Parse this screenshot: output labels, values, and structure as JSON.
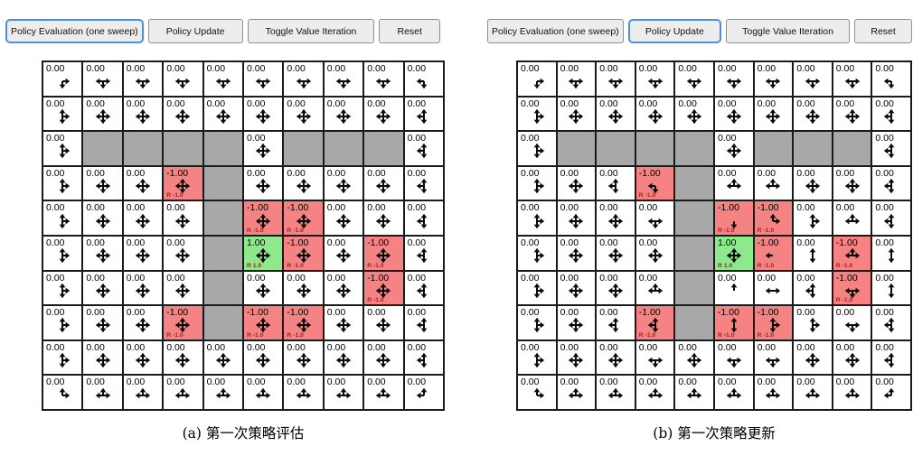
{
  "colors": {
    "accent_blue": "#4a90e2",
    "wall_gray": "#a8a8a8",
    "penalty_red": "#f58383",
    "goal_green": "#8fe88b",
    "reward_text": "#a32222"
  },
  "panels": [
    {
      "id": "a",
      "caption": "(a) 第一次策略评估",
      "buttons": [
        {
          "label": "Policy Evaluation (one sweep)",
          "active": true
        },
        {
          "label": "Policy Update",
          "active": false
        },
        {
          "label": "Toggle Value Iteration",
          "active": false
        },
        {
          "label": "Reset",
          "active": false
        }
      ],
      "grid": {
        "rows": 10,
        "cols": 10,
        "cells": [
          [
            {
              "v": "0.00",
              "a": "dr"
            },
            {
              "v": "0.00",
              "a": "ldr"
            },
            {
              "v": "0.00",
              "a": "ldr"
            },
            {
              "v": "0.00",
              "a": "ldr"
            },
            {
              "v": "0.00",
              "a": "ldr"
            },
            {
              "v": "0.00",
              "a": "ldr"
            },
            {
              "v": "0.00",
              "a": "ldr"
            },
            {
              "v": "0.00",
              "a": "ldr"
            },
            {
              "v": "0.00",
              "a": "ldr"
            },
            {
              "v": "0.00",
              "a": "dl"
            }
          ],
          [
            {
              "v": "0.00",
              "a": "udr"
            },
            {
              "v": "0.00",
              "a": "udlr"
            },
            {
              "v": "0.00",
              "a": "udlr"
            },
            {
              "v": "0.00",
              "a": "udlr"
            },
            {
              "v": "0.00",
              "a": "udlr"
            },
            {
              "v": "0.00",
              "a": "udlr"
            },
            {
              "v": "0.00",
              "a": "udlr"
            },
            {
              "v": "0.00",
              "a": "udlr"
            },
            {
              "v": "0.00",
              "a": "udlr"
            },
            {
              "v": "0.00",
              "a": "udl"
            }
          ],
          [
            {
              "v": "0.00",
              "a": "udr"
            },
            {
              "t": "w"
            },
            {
              "t": "w"
            },
            {
              "t": "w"
            },
            {
              "t": "w"
            },
            {
              "v": "0.00",
              "a": "udlr"
            },
            {
              "t": "w"
            },
            {
              "t": "w"
            },
            {
              "t": "w"
            },
            {
              "v": "0.00",
              "a": "udl"
            }
          ],
          [
            {
              "v": "0.00",
              "a": "udr"
            },
            {
              "v": "0.00",
              "a": "udlr"
            },
            {
              "v": "0.00",
              "a": "udlr"
            },
            {
              "v": "-1.00",
              "t": "neg",
              "a": "udlr",
              "r": "R -1.0"
            },
            {
              "t": "w"
            },
            {
              "v": "0.00",
              "a": "udlr"
            },
            {
              "v": "0.00",
              "a": "udlr"
            },
            {
              "v": "0.00",
              "a": "udlr"
            },
            {
              "v": "0.00",
              "a": "udlr"
            },
            {
              "v": "0.00",
              "a": "udl"
            }
          ],
          [
            {
              "v": "0.00",
              "a": "udr"
            },
            {
              "v": "0.00",
              "a": "udlr"
            },
            {
              "v": "0.00",
              "a": "udlr"
            },
            {
              "v": "0.00",
              "a": "udlr"
            },
            {
              "t": "w"
            },
            {
              "v": "-1.00",
              "t": "neg",
              "a": "udlr",
              "r": "R -1.0"
            },
            {
              "v": "-1.00",
              "t": "neg",
              "a": "udlr",
              "r": "R -1.0"
            },
            {
              "v": "0.00",
              "a": "udlr"
            },
            {
              "v": "0.00",
              "a": "udlr"
            },
            {
              "v": "0.00",
              "a": "udl"
            }
          ],
          [
            {
              "v": "0.00",
              "a": "udr"
            },
            {
              "v": "0.00",
              "a": "udlr"
            },
            {
              "v": "0.00",
              "a": "udlr"
            },
            {
              "v": "0.00",
              "a": "udlr"
            },
            {
              "t": "w"
            },
            {
              "v": "1.00",
              "t": "pos",
              "a": "udlr",
              "r": "R 1.0"
            },
            {
              "v": "-1.00",
              "t": "neg",
              "a": "udlr",
              "r": "R -1.0"
            },
            {
              "v": "0.00",
              "a": "udlr"
            },
            {
              "v": "-1.00",
              "t": "neg",
              "a": "udlr",
              "r": "R -1.0"
            },
            {
              "v": "0.00",
              "a": "udl"
            }
          ],
          [
            {
              "v": "0.00",
              "a": "udr"
            },
            {
              "v": "0.00",
              "a": "udlr"
            },
            {
              "v": "0.00",
              "a": "udlr"
            },
            {
              "v": "0.00",
              "a": "udlr"
            },
            {
              "t": "w"
            },
            {
              "v": "0.00",
              "a": "udlr"
            },
            {
              "v": "0.00",
              "a": "udlr"
            },
            {
              "v": "0.00",
              "a": "udlr"
            },
            {
              "v": "-1.00",
              "t": "neg",
              "a": "udlr",
              "r": "R -1.0"
            },
            {
              "v": "0.00",
              "a": "udl"
            }
          ],
          [
            {
              "v": "0.00",
              "a": "udr"
            },
            {
              "v": "0.00",
              "a": "udlr"
            },
            {
              "v": "0.00",
              "a": "udlr"
            },
            {
              "v": "-1.00",
              "t": "neg",
              "a": "udlr",
              "r": "R -1.0"
            },
            {
              "t": "w"
            },
            {
              "v": "-1.00",
              "t": "neg",
              "a": "udlr",
              "r": "R -1.0"
            },
            {
              "v": "-1.00",
              "t": "neg",
              "a": "udlr",
              "r": "R -1.0"
            },
            {
              "v": "0.00",
              "a": "udlr"
            },
            {
              "v": "0.00",
              "a": "udlr"
            },
            {
              "v": "0.00",
              "a": "udl"
            }
          ],
          [
            {
              "v": "0.00",
              "a": "udr"
            },
            {
              "v": "0.00",
              "a": "udlr"
            },
            {
              "v": "0.00",
              "a": "udlr"
            },
            {
              "v": "0.00",
              "a": "udlr"
            },
            {
              "v": "0.00",
              "a": "udlr"
            },
            {
              "v": "0.00",
              "a": "udlr"
            },
            {
              "v": "0.00",
              "a": "udlr"
            },
            {
              "v": "0.00",
              "a": "udlr"
            },
            {
              "v": "0.00",
              "a": "udlr"
            },
            {
              "v": "0.00",
              "a": "udl"
            }
          ],
          [
            {
              "v": "0.00",
              "a": "ur"
            },
            {
              "v": "0.00",
              "a": "lur"
            },
            {
              "v": "0.00",
              "a": "lur"
            },
            {
              "v": "0.00",
              "a": "lur"
            },
            {
              "v": "0.00",
              "a": "lur"
            },
            {
              "v": "0.00",
              "a": "lur"
            },
            {
              "v": "0.00",
              "a": "lur"
            },
            {
              "v": "0.00",
              "a": "lur"
            },
            {
              "v": "0.00",
              "a": "lur"
            },
            {
              "v": "0.00",
              "a": "ul"
            }
          ]
        ]
      }
    },
    {
      "id": "b",
      "caption": "(b) 第一次策略更新",
      "buttons": [
        {
          "label": "Policy Evaluation (one sweep)",
          "active": false
        },
        {
          "label": "Policy Update",
          "active": true
        },
        {
          "label": "Toggle Value Iteration",
          "active": false
        },
        {
          "label": "Reset",
          "active": false
        }
      ],
      "grid": {
        "rows": 10,
        "cols": 10,
        "cells": [
          [
            {
              "v": "0.00",
              "a": "dr"
            },
            {
              "v": "0.00",
              "a": "ldr"
            },
            {
              "v": "0.00",
              "a": "ldr"
            },
            {
              "v": "0.00",
              "a": "ldr"
            },
            {
              "v": "0.00",
              "a": "ldr"
            },
            {
              "v": "0.00",
              "a": "ldr"
            },
            {
              "v": "0.00",
              "a": "ldr"
            },
            {
              "v": "0.00",
              "a": "ldr"
            },
            {
              "v": "0.00",
              "a": "ldr"
            },
            {
              "v": "0.00",
              "a": "dl"
            }
          ],
          [
            {
              "v": "0.00",
              "a": "udr"
            },
            {
              "v": "0.00",
              "a": "udlr"
            },
            {
              "v": "0.00",
              "a": "udlr"
            },
            {
              "v": "0.00",
              "a": "udlr"
            },
            {
              "v": "0.00",
              "a": "udlr"
            },
            {
              "v": "0.00",
              "a": "udlr"
            },
            {
              "v": "0.00",
              "a": "udlr"
            },
            {
              "v": "0.00",
              "a": "udlr"
            },
            {
              "v": "0.00",
              "a": "udlr"
            },
            {
              "v": "0.00",
              "a": "udl"
            }
          ],
          [
            {
              "v": "0.00",
              "a": "udr"
            },
            {
              "t": "w"
            },
            {
              "t": "w"
            },
            {
              "t": "w"
            },
            {
              "t": "w"
            },
            {
              "v": "0.00",
              "a": "udlr"
            },
            {
              "t": "w"
            },
            {
              "t": "w"
            },
            {
              "t": "w"
            },
            {
              "v": "0.00",
              "a": "udl"
            }
          ],
          [
            {
              "v": "0.00",
              "a": "udr"
            },
            {
              "v": "0.00",
              "a": "udlr"
            },
            {
              "v": "0.00",
              "a": "uld"
            },
            {
              "v": "-1.00",
              "t": "neg",
              "a": "ld",
              "r": "R -1.0"
            },
            {
              "t": "w"
            },
            {
              "v": "0.00",
              "a": "ulr"
            },
            {
              "v": "0.00",
              "a": "ulr"
            },
            {
              "v": "0.00",
              "a": "udlr"
            },
            {
              "v": "0.00",
              "a": "udlr"
            },
            {
              "v": "0.00",
              "a": "udl"
            }
          ],
          [
            {
              "v": "0.00",
              "a": "udr"
            },
            {
              "v": "0.00",
              "a": "udlr"
            },
            {
              "v": "0.00",
              "a": "udlr"
            },
            {
              "v": "0.00",
              "a": "ldr"
            },
            {
              "t": "w"
            },
            {
              "v": "-1.00",
              "t": "neg",
              "a": "d",
              "r": "R -1.0"
            },
            {
              "v": "-1.00",
              "t": "neg",
              "a": "ur",
              "r": "R -1.0"
            },
            {
              "v": "0.00",
              "a": "udr"
            },
            {
              "v": "0.00",
              "a": "ulr"
            },
            {
              "v": "0.00",
              "a": "udl"
            }
          ],
          [
            {
              "v": "0.00",
              "a": "udr"
            },
            {
              "v": "0.00",
              "a": "udlr"
            },
            {
              "v": "0.00",
              "a": "udlr"
            },
            {
              "v": "0.00",
              "a": "udlr"
            },
            {
              "t": "w"
            },
            {
              "v": "1.00",
              "t": "pos",
              "a": "udlr",
              "r": "R 1.0"
            },
            {
              "v": "-1.00",
              "t": "neg",
              "a": "l",
              "r": "R -1.0"
            },
            {
              "v": "0.00",
              "a": "ud"
            },
            {
              "v": "-1.00",
              "t": "neg",
              "a": "ulr",
              "r": "R -1.0"
            },
            {
              "v": "0.00",
              "a": "ud"
            }
          ],
          [
            {
              "v": "0.00",
              "a": "udr"
            },
            {
              "v": "0.00",
              "a": "udlr"
            },
            {
              "v": "0.00",
              "a": "udlr"
            },
            {
              "v": "0.00",
              "a": "ulr"
            },
            {
              "t": "w"
            },
            {
              "v": "0.00",
              "a": "u"
            },
            {
              "v": "0.00",
              "a": "lr"
            },
            {
              "v": "0.00",
              "a": "uld"
            },
            {
              "v": "-1.00",
              "t": "neg",
              "a": "ldr",
              "r": "R -1.0"
            },
            {
              "v": "0.00",
              "a": "ud"
            }
          ],
          [
            {
              "v": "0.00",
              "a": "udr"
            },
            {
              "v": "0.00",
              "a": "udlr"
            },
            {
              "v": "0.00",
              "a": "uld"
            },
            {
              "v": "-1.00",
              "t": "neg",
              "a": "uld",
              "r": "R -1.0"
            },
            {
              "t": "w"
            },
            {
              "v": "-1.00",
              "t": "neg",
              "a": "ud",
              "r": "R -1.0"
            },
            {
              "v": "-1.00",
              "t": "neg",
              "a": "udr",
              "r": "R -1.0"
            },
            {
              "v": "0.00",
              "a": "udr"
            },
            {
              "v": "0.00",
              "a": "ldr"
            },
            {
              "v": "0.00",
              "a": "udl"
            }
          ],
          [
            {
              "v": "0.00",
              "a": "udr"
            },
            {
              "v": "0.00",
              "a": "udlr"
            },
            {
              "v": "0.00",
              "a": "udlr"
            },
            {
              "v": "0.00",
              "a": "ldr"
            },
            {
              "v": "0.00",
              "a": "udlr"
            },
            {
              "v": "0.00",
              "a": "ldr"
            },
            {
              "v": "0.00",
              "a": "ldr"
            },
            {
              "v": "0.00",
              "a": "udlr"
            },
            {
              "v": "0.00",
              "a": "udlr"
            },
            {
              "v": "0.00",
              "a": "udl"
            }
          ],
          [
            {
              "v": "0.00",
              "a": "ur"
            },
            {
              "v": "0.00",
              "a": "lur"
            },
            {
              "v": "0.00",
              "a": "lur"
            },
            {
              "v": "0.00",
              "a": "lur"
            },
            {
              "v": "0.00",
              "a": "lur"
            },
            {
              "v": "0.00",
              "a": "lur"
            },
            {
              "v": "0.00",
              "a": "lur"
            },
            {
              "v": "0.00",
              "a": "lur"
            },
            {
              "v": "0.00",
              "a": "lur"
            },
            {
              "v": "0.00",
              "a": "ul"
            }
          ]
        ]
      }
    }
  ]
}
